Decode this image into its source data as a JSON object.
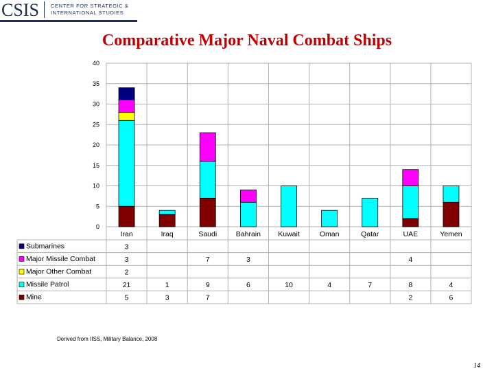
{
  "logo": {
    "abbr": "CSIS",
    "line1": "CENTER FOR STRATEGIC &",
    "line2": "INTERNATIONAL STUDIES",
    "color": "#1f2f4f"
  },
  "title": "Comparative Major Naval Combat Ships",
  "source_note": "Derived from IISS, Military Balance, 2008",
  "page_number": "14",
  "chart_data": {
    "type": "bar",
    "stacked": true,
    "categories": [
      "Iran",
      "Iraq",
      "Saudi",
      "Bahrain",
      "Kuwait",
      "Oman",
      "Qatar",
      "UAE",
      "Yemen"
    ],
    "ylim": [
      0,
      40
    ],
    "yticks": [
      0,
      5,
      10,
      15,
      20,
      25,
      30,
      35,
      40
    ],
    "grid": true,
    "legend": "data-table-below",
    "series": [
      {
        "name": "Mine",
        "color": "#800000",
        "values": [
          5,
          3,
          7,
          null,
          null,
          null,
          null,
          2,
          6
        ]
      },
      {
        "name": "Missile Patrol",
        "color": "#00ffff",
        "values": [
          21,
          1,
          9,
          6,
          10,
          4,
          7,
          8,
          4
        ]
      },
      {
        "name": "Major Other Combat",
        "color": "#ffff00",
        "values": [
          2,
          null,
          null,
          null,
          null,
          null,
          null,
          null,
          null
        ]
      },
      {
        "name": "Major Missile Combat",
        "color": "#ff00ff",
        "values": [
          3,
          null,
          7,
          3,
          null,
          null,
          null,
          4,
          null
        ]
      },
      {
        "name": "Submarines",
        "color": "#000080",
        "values": [
          3,
          null,
          null,
          null,
          null,
          null,
          null,
          null,
          null
        ]
      }
    ],
    "table_rows_order": [
      "Submarines",
      "Major Missile Combat",
      "Major Other Combat",
      "Missile Patrol",
      "Mine"
    ]
  }
}
